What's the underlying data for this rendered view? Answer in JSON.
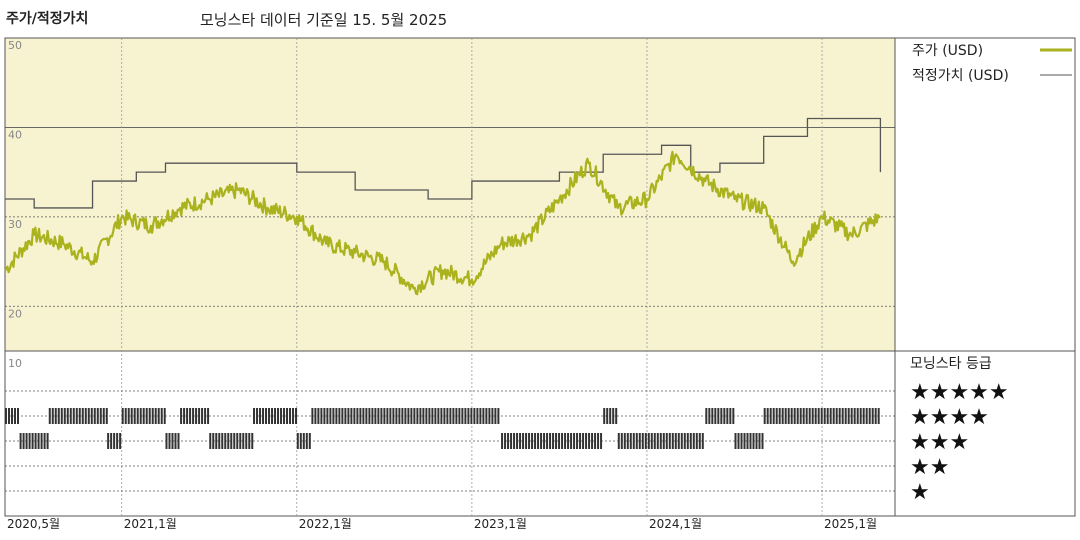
{
  "header": {
    "left_title": "주가/적정가치",
    "subtitle": "모닝스타 데이터 기준일 15. 5월 2025"
  },
  "legend": {
    "price_label": "주가 (USD)",
    "fair_label": "적정가치 (USD)",
    "rating_label": "모닝스타 등급"
  },
  "colors": {
    "price": "#aab21e",
    "fair": "#555555",
    "panel_bg": "#f7f3d0",
    "rating_bar": "#333333"
  },
  "chart_data": {
    "type": "line",
    "xlabel": "",
    "ylabel": "",
    "ylim": [
      15,
      50
    ],
    "yticks": [
      "50",
      "40",
      "30",
      "20"
    ],
    "xticks": [
      "2020,5월",
      "2021,1월",
      "2022,1월",
      "2023,1월",
      "2024,1월",
      "2025,1월"
    ],
    "grid": true,
    "legend_position": "right",
    "series": [
      {
        "name": "주가 (USD)",
        "x": [
          "2020-05",
          "2020-07",
          "2020-09",
          "2020-11",
          "2021-01",
          "2021-03",
          "2021-05",
          "2021-07",
          "2021-09",
          "2021-11",
          "2022-01",
          "2022-03",
          "2022-05",
          "2022-07",
          "2022-09",
          "2022-11",
          "2023-01",
          "2023-03",
          "2023-05",
          "2023-07",
          "2023-09",
          "2023-11",
          "2024-01",
          "2024-03",
          "2024-05",
          "2024-07",
          "2024-09",
          "2024-11",
          "2025-01",
          "2025-03",
          "2025-05"
        ],
        "values": [
          24,
          28,
          27,
          25,
          30,
          29,
          31,
          32,
          33,
          31,
          30,
          27,
          26,
          25,
          22,
          24,
          23,
          27,
          28,
          32,
          36,
          31,
          32,
          37,
          34,
          32,
          31,
          25,
          30,
          28,
          30
        ]
      },
      {
        "name": "적정가치 (USD)",
        "x": [
          "2020-05",
          "2020-07",
          "2020-11",
          "2021-02",
          "2021-04",
          "2021-06",
          "2022-01",
          "2022-05",
          "2022-08",
          "2022-10",
          "2023-01",
          "2023-07",
          "2023-10",
          "2024-02",
          "2024-04",
          "2024-06",
          "2024-09",
          "2024-12",
          "2025-04",
          "2025-05"
        ],
        "values": [
          32,
          31,
          34,
          35,
          36,
          36,
          35,
          33,
          33,
          32,
          34,
          35,
          37,
          38,
          35,
          36,
          39,
          41,
          41,
          35
        ]
      }
    ],
    "ratings": {
      "title": "모닝스타 등급",
      "star_levels": [
        "★★★★★",
        "★★★★",
        "★★★",
        "★★",
        "★"
      ],
      "periods": [
        {
          "start": "2020-05",
          "end": "2020-06",
          "stars": 4
        },
        {
          "start": "2020-06",
          "end": "2020-08",
          "stars": 3
        },
        {
          "start": "2020-08",
          "end": "2020-12",
          "stars": 4
        },
        {
          "start": "2020-12",
          "end": "2021-01",
          "stars": 3
        },
        {
          "start": "2021-01",
          "end": "2021-04",
          "stars": 4
        },
        {
          "start": "2021-04",
          "end": "2021-05",
          "stars": 3
        },
        {
          "start": "2021-05",
          "end": "2021-07",
          "stars": 4
        },
        {
          "start": "2021-07",
          "end": "2021-10",
          "stars": 3
        },
        {
          "start": "2021-10",
          "end": "2022-01",
          "stars": 4
        },
        {
          "start": "2022-01",
          "end": "2022-02",
          "stars": 3
        },
        {
          "start": "2022-02",
          "end": "2023-03",
          "stars": 4
        },
        {
          "start": "2023-03",
          "end": "2023-10",
          "stars": 3
        },
        {
          "start": "2023-10",
          "end": "2023-11",
          "stars": 4
        },
        {
          "start": "2023-11",
          "end": "2024-05",
          "stars": 3
        },
        {
          "start": "2024-05",
          "end": "2024-07",
          "stars": 4
        },
        {
          "start": "2024-07",
          "end": "2024-09",
          "stars": 3
        },
        {
          "start": "2024-09",
          "end": "2025-05",
          "stars": 4
        }
      ]
    }
  }
}
